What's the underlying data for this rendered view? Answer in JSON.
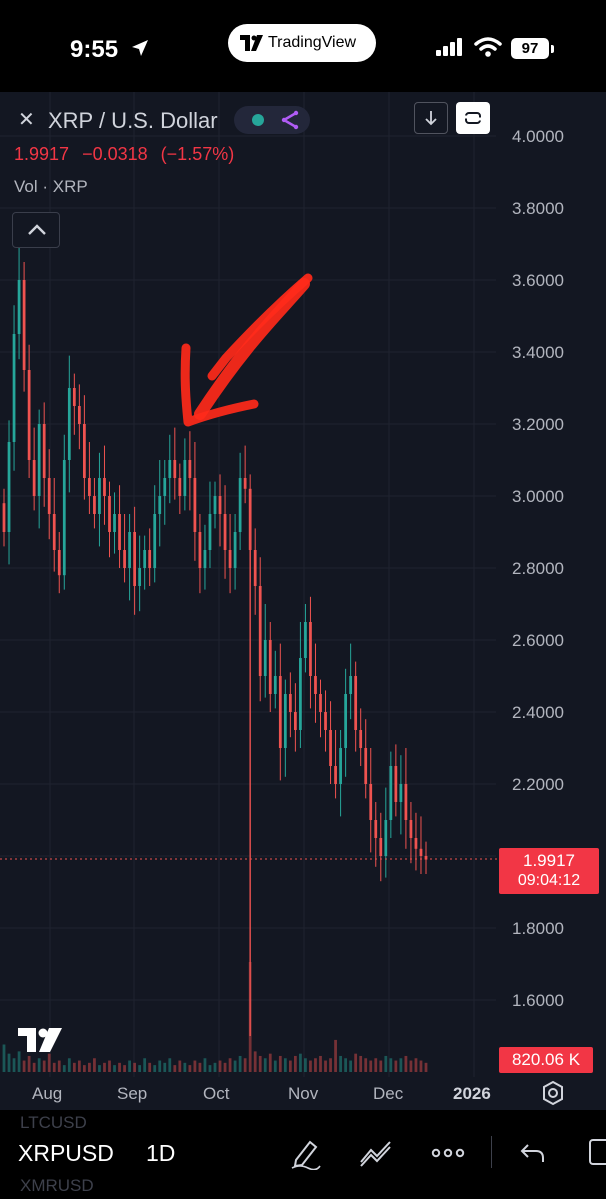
{
  "status_bar": {
    "time": "9:55",
    "app_pill": "TradingView",
    "battery": "97"
  },
  "chart": {
    "symbol_title": "XRP / U.S. Dollar",
    "last_price": "1.9917",
    "change": "−0.0318",
    "change_pct": "(−1.57%)",
    "volume_label": "Vol · XRP",
    "price_tag": "1.9917",
    "countdown": "09:04:12",
    "volume_tag": "820.06 K",
    "price_axis": [
      "4.0000",
      "3.8000",
      "3.6000",
      "3.4000",
      "3.2000",
      "3.0000",
      "2.8000",
      "2.6000",
      "2.4000",
      "2.2000",
      "1.8000",
      "1.6000"
    ],
    "time_axis": [
      "Aug",
      "Sep",
      "Oct",
      "Nov",
      "Dec",
      "2026"
    ],
    "colors": {
      "up": "#26a69a",
      "down": "#ef5350",
      "background": "#131722",
      "annotation": "#ff2a1a"
    }
  },
  "chart_data": {
    "type": "candlestick",
    "ylabel": "",
    "xlabel": "",
    "ylim": [
      1.5,
      4.05
    ],
    "x_ticks": [
      "Aug",
      "Sep",
      "Oct",
      "Nov",
      "Dec",
      "2026"
    ],
    "last_price": 1.9917,
    "close_series": [
      2.9,
      3.15,
      3.45,
      3.6,
      3.35,
      3.1,
      3.0,
      3.2,
      3.05,
      2.95,
      2.85,
      2.78,
      3.1,
      3.3,
      3.25,
      3.2,
      3.05,
      3.0,
      2.95,
      3.05,
      3.0,
      2.9,
      2.95,
      2.85,
      2.8,
      2.9,
      2.75,
      2.8,
      2.85,
      2.8,
      2.95,
      3.0,
      3.05,
      3.1,
      3.05,
      3.0,
      3.1,
      3.05,
      2.9,
      2.8,
      2.85,
      2.95,
      3.0,
      2.95,
      2.85,
      2.8,
      2.9,
      3.05,
      3.02,
      2.85,
      2.75,
      2.5,
      2.6,
      2.45,
      2.5,
      2.3,
      2.45,
      2.4,
      2.35,
      2.55,
      2.65,
      2.5,
      2.45,
      2.4,
      2.35,
      2.25,
      2.2,
      2.3,
      2.45,
      2.5,
      2.35,
      2.3,
      2.2,
      2.1,
      2.05,
      2.0,
      2.1,
      2.25,
      2.15,
      2.2,
      2.1,
      2.05,
      2.02,
      2.0,
      1.99
    ],
    "volume_series": [
      12,
      8,
      6,
      9,
      5,
      7,
      4,
      6,
      5,
      8,
      4,
      5,
      3,
      6,
      4,
      5,
      3,
      4,
      6,
      3,
      4,
      5,
      3,
      4,
      3,
      5,
      4,
      3,
      6,
      4,
      3,
      5,
      4,
      6,
      3,
      5,
      4,
      3,
      5,
      4,
      6,
      3,
      4,
      5,
      4,
      6,
      5,
      7,
      6,
      48,
      9,
      7,
      6,
      8,
      5,
      7,
      6,
      5,
      7,
      8,
      6,
      5,
      6,
      7,
      5,
      6,
      14,
      7,
      6,
      5,
      8,
      7,
      6,
      5,
      6,
      5,
      7,
      6,
      5,
      6,
      7,
      5,
      6,
      5,
      4
    ]
  },
  "toolbar": {
    "symbol": "XRPUSD",
    "interval": "1D",
    "ghost_above": "LTCUSD",
    "ghost_below": "XMRUSD"
  }
}
